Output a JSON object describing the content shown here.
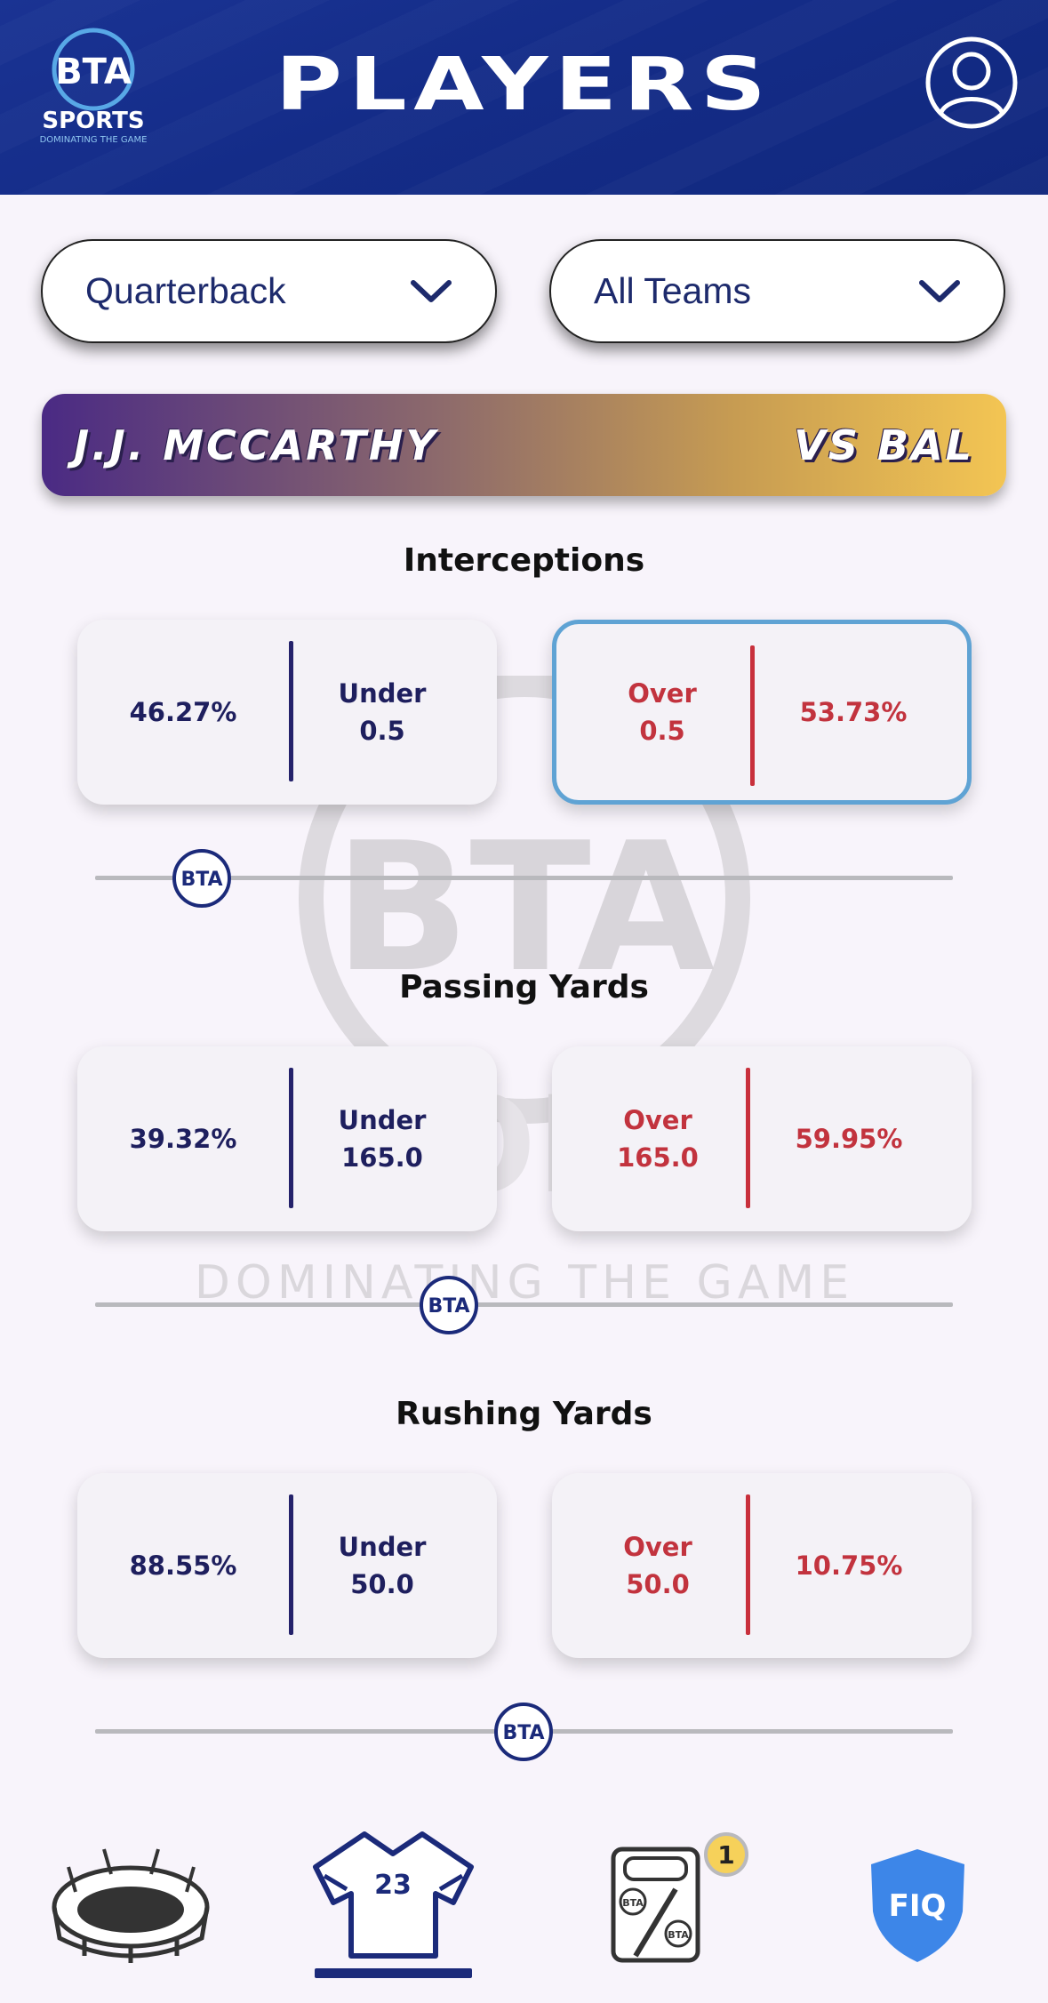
{
  "header": {
    "title": "PLAYERS",
    "logo_text": "BTA",
    "logo_sub": "SPORTS",
    "logo_tagline": "DOMINATING THE GAME"
  },
  "filters": {
    "position": "Quarterback",
    "team": "All Teams"
  },
  "player": {
    "name": "J.J. MCCARTHY",
    "opponent": "VS BAL"
  },
  "props": [
    {
      "title": "Interceptions",
      "under": {
        "pct": "46.27%",
        "label": "Under",
        "line": "0.5"
      },
      "over": {
        "pct": "53.73%",
        "label": "Over",
        "line": "0.5"
      },
      "selected": "over",
      "slider_position": 0.12
    },
    {
      "title": "Passing Yards",
      "under": {
        "pct": "39.32%",
        "label": "Under",
        "line": "165.0"
      },
      "over": {
        "pct": "59.95%",
        "label": "Over",
        "line": "165.0"
      },
      "selected": "none",
      "slider_position": 0.41
    },
    {
      "title": "Rushing Yards",
      "under": {
        "pct": "88.55%",
        "label": "Under",
        "line": "50.0"
      },
      "over": {
        "pct": "10.75%",
        "label": "Over",
        "line": "50.0"
      },
      "selected": "none",
      "slider_position": 0.5
    }
  ],
  "nav": {
    "items": [
      "stadium-icon",
      "jersey-icon",
      "betslip-icon",
      "fiq-icon"
    ],
    "active": "jersey-icon",
    "jersey_number": "23",
    "betslip_count": "1",
    "fiq_label": "FIQ"
  },
  "colors": {
    "header": "#142c88",
    "under": "#1e1f5e",
    "over": "#c2333e",
    "selected_border": "#5fa3d4"
  }
}
